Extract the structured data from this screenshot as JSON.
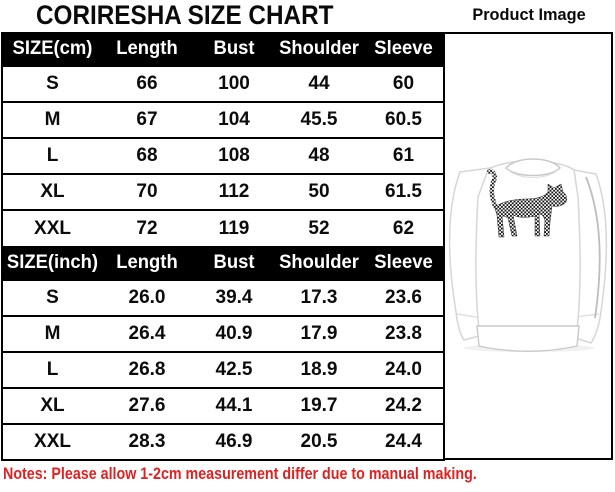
{
  "title": "CORIRESHA SIZE CHART",
  "product_image_label": "Product Image",
  "note": "Notes: Please allow 1-2cm measurement differ due to manual making.",
  "colors": {
    "header_bg": "#000000",
    "header_text": "#ffffff",
    "note_red": "#dd2222",
    "border": "#000000"
  },
  "product_image": {
    "alt": "white crewneck sweatshirt with black checkered walking-cat print"
  },
  "chart_data": {
    "type": "table",
    "tables": [
      {
        "unit": "cm",
        "headers": [
          "SIZE(cm)",
          "Length",
          "Bust",
          "Shoulder",
          "Sleeve"
        ],
        "rows": [
          [
            "S",
            "66",
            "100",
            "44",
            "60"
          ],
          [
            "M",
            "67",
            "104",
            "45.5",
            "60.5"
          ],
          [
            "L",
            "68",
            "108",
            "48",
            "61"
          ],
          [
            "XL",
            "70",
            "112",
            "50",
            "61.5"
          ],
          [
            "XXL",
            "72",
            "119",
            "52",
            "62"
          ]
        ]
      },
      {
        "unit": "inch",
        "headers": [
          "SIZE(inch)",
          "Length",
          "Bust",
          "Shoulder",
          "Sleeve"
        ],
        "rows": [
          [
            "S",
            "26.0",
            "39.4",
            "17.3",
            "23.6"
          ],
          [
            "M",
            "26.4",
            "40.9",
            "17.9",
            "23.8"
          ],
          [
            "L",
            "26.8",
            "42.5",
            "18.9",
            "24.0"
          ],
          [
            "XL",
            "27.6",
            "44.1",
            "19.7",
            "24.2"
          ],
          [
            "XXL",
            "28.3",
            "46.9",
            "20.5",
            "24.4"
          ]
        ]
      }
    ]
  }
}
